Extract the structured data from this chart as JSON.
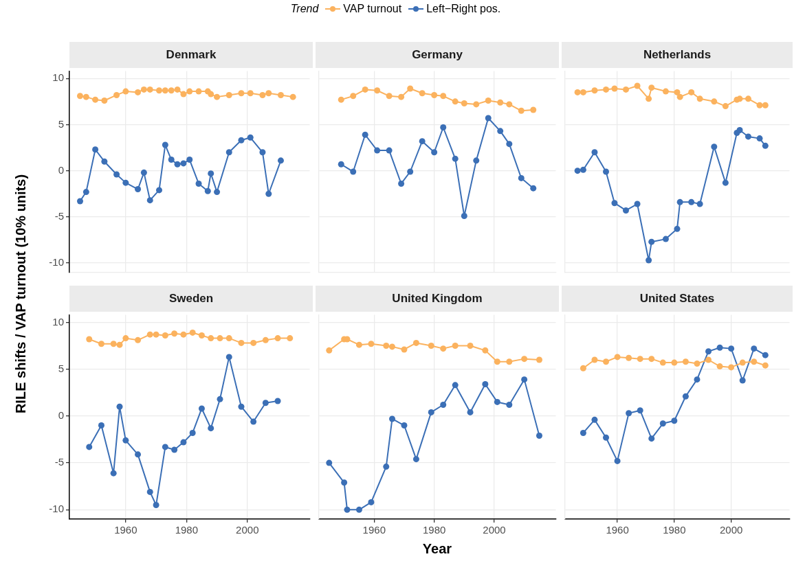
{
  "chart_data": [
    {
      "type": "line",
      "title": "Denmark",
      "ylabel": "RILE shifts / VAP turnout (10% units)",
      "legend": "top",
      "legend_title": "Trend",
      "marker": "circle",
      "grid": true,
      "tick_labels": "y",
      "xlim": [
        1941.5,
        2020.5
      ],
      "xticks": [
        1960,
        1980,
        2000
      ],
      "ylim": [
        -11,
        10.8
      ],
      "yticks": [
        -10,
        -5,
        0,
        5,
        10
      ],
      "x": [
        1945,
        1947,
        1950,
        1953,
        1957,
        1960,
        1964,
        1966,
        1968,
        1971,
        1973,
        1975,
        1977,
        1979,
        1981,
        1984,
        1987,
        1988,
        1990,
        1994,
        1998,
        2001,
        2005,
        2007,
        2011,
        2015
      ],
      "series": [
        {
          "name": "VAP turnout",
          "color": "#fbb25e",
          "values": [
            8.1,
            8.0,
            7.7,
            7.6,
            8.2,
            8.6,
            8.5,
            8.8,
            8.8,
            8.7,
            8.7,
            8.7,
            8.8,
            8.3,
            8.6,
            8.6,
            8.6,
            8.3,
            8.0,
            8.2,
            8.4,
            8.4,
            8.2,
            8.4,
            8.2,
            8.0
          ]
        },
        {
          "name": "Left−Right pos.",
          "color": "#3b6fb6",
          "values": [
            -3.3,
            -2.3,
            2.3,
            1.0,
            -0.4,
            -1.3,
            -2.0,
            -0.2,
            -3.2,
            -2.1,
            2.8,
            1.2,
            0.7,
            0.8,
            1.2,
            -1.4,
            -2.2,
            -0.3,
            -2.3,
            2.0,
            3.3,
            3.6,
            2.0,
            -2.5,
            1.1,
            null
          ]
        }
      ]
    },
    {
      "type": "line",
      "title": "Germany",
      "marker": "circle",
      "grid": true,
      "tick_labels": false,
      "xlim": [
        1941.5,
        2020.5
      ],
      "xticks": [
        1960,
        1980,
        2000
      ],
      "ylim": [
        -11,
        10.8
      ],
      "yticks": [
        -10,
        -5,
        0,
        5,
        10
      ],
      "x": [
        1949,
        1953,
        1957,
        1961,
        1965,
        1969,
        1972,
        1976,
        1980,
        1983,
        1987,
        1990,
        1994,
        1998,
        2002,
        2005,
        2009,
        2013
      ],
      "series": [
        {
          "color": "#fbb25e",
          "values": [
            7.7,
            8.1,
            8.8,
            8.7,
            8.1,
            8.0,
            8.9,
            8.4,
            8.2,
            8.1,
            7.5,
            7.3,
            7.2,
            7.6,
            7.4,
            7.2,
            6.5,
            6.6
          ]
        },
        {
          "color": "#3b6fb6",
          "values": [
            0.7,
            -0.1,
            3.9,
            2.2,
            2.2,
            -1.4,
            -0.1,
            3.2,
            2.0,
            4.7,
            1.3,
            -4.9,
            1.1,
            5.7,
            4.3,
            2.9,
            -0.8,
            -1.9
          ]
        }
      ]
    },
    {
      "type": "line",
      "title": "Netherlands",
      "marker": "circle",
      "grid": true,
      "tick_labels": false,
      "xlim": [
        1941.5,
        2020.5
      ],
      "xticks": [
        1960,
        1980,
        2000
      ],
      "ylim": [
        -11,
        10.8
      ],
      "yticks": [
        -10,
        -5,
        0,
        5,
        10
      ],
      "x": [
        1946,
        1948,
        1952,
        1956,
        1959,
        1963,
        1967,
        1971,
        1972,
        1977,
        1981,
        1982,
        1986,
        1989,
        1994,
        1998,
        2002,
        2003,
        2006,
        2010,
        2012
      ],
      "series": [
        {
          "color": "#fbb25e",
          "values": [
            8.5,
            8.5,
            8.7,
            8.8,
            8.9,
            8.8,
            9.2,
            7.8,
            9.0,
            8.6,
            8.5,
            8.0,
            8.5,
            7.8,
            7.5,
            7.0,
            7.7,
            7.8,
            7.8,
            7.1,
            7.1
          ]
        },
        {
          "color": "#3b6fb6",
          "values": [
            0.0,
            0.1,
            2.0,
            -0.1,
            -3.5,
            -4.3,
            -3.6,
            -9.7,
            -7.7,
            -7.4,
            -6.3,
            -3.4,
            -3.4,
            -3.6,
            2.6,
            -1.3,
            4.1,
            4.4,
            3.7,
            3.5,
            2.7
          ]
        }
      ]
    },
    {
      "type": "line",
      "title": "Sweden",
      "marker": "circle",
      "grid": true,
      "xlim": [
        1941.5,
        2020.5
      ],
      "xticks": [
        1960,
        1980,
        2000
      ],
      "ylim": [
        -11,
        10.8
      ],
      "yticks": [
        -10,
        -5,
        0,
        5,
        10
      ],
      "x": [
        1948,
        1952,
        1956,
        1958,
        1960,
        1964,
        1968,
        1970,
        1973,
        1976,
        1979,
        1982,
        1985,
        1988,
        1991,
        1994,
        1998,
        2002,
        2006,
        2010,
        2014
      ],
      "series": [
        {
          "color": "#fbb25e",
          "values": [
            8.2,
            7.7,
            7.7,
            7.6,
            8.3,
            8.1,
            8.7,
            8.7,
            8.6,
            8.8,
            8.7,
            8.9,
            8.6,
            8.3,
            8.3,
            8.3,
            7.8,
            7.8,
            8.1,
            8.3,
            8.3
          ]
        },
        {
          "color": "#3b6fb6",
          "values": [
            -3.3,
            -1.0,
            -6.1,
            1.0,
            -2.6,
            -4.1,
            -8.1,
            -9.5,
            -3.3,
            -3.6,
            -2.8,
            -1.8,
            0.8,
            -1.3,
            1.8,
            6.3,
            1.0,
            -0.6,
            1.4,
            1.6,
            null
          ]
        }
      ]
    },
    {
      "type": "line",
      "title": "United Kingdom",
      "xlabel": "Year",
      "marker": "circle",
      "grid": true,
      "tick_labels": "x",
      "xlim": [
        1941.5,
        2020.5
      ],
      "xticks": [
        1960,
        1980,
        2000
      ],
      "ylim": [
        -11,
        10.8
      ],
      "yticks": [
        -10,
        -5,
        0,
        5,
        10
      ],
      "x": [
        1945,
        1950,
        1951,
        1955,
        1959,
        1964,
        1966,
        1970,
        1974,
        1979,
        1983,
        1987,
        1992,
        1997,
        2001,
        2005,
        2010,
        2015
      ],
      "series": [
        {
          "color": "#fbb25e",
          "values": [
            7.0,
            8.2,
            8.2,
            7.6,
            7.7,
            7.5,
            7.4,
            7.1,
            7.8,
            7.5,
            7.2,
            7.5,
            7.5,
            7.0,
            5.8,
            5.8,
            6.1,
            6.0
          ]
        },
        {
          "color": "#3b6fb6",
          "values": [
            -5.0,
            -7.1,
            -10.0,
            -10.0,
            -9.2,
            -5.4,
            -0.3,
            -1.0,
            -4.6,
            0.4,
            1.2,
            3.3,
            0.4,
            3.4,
            1.5,
            1.2,
            3.9,
            -2.1
          ]
        }
      ]
    },
    {
      "type": "line",
      "title": "United States",
      "marker": "circle",
      "grid": true,
      "tick_labels": "x",
      "xlim": [
        1941.5,
        2020.5
      ],
      "xticks": [
        1960,
        1980,
        2000
      ],
      "ylim": [
        -11,
        10.8
      ],
      "yticks": [
        -10,
        -5,
        0,
        5,
        10
      ],
      "x": [
        1948,
        1952,
        1956,
        1960,
        1964,
        1968,
        1972,
        1976,
        1980,
        1984,
        1988,
        1992,
        1996,
        2000,
        2004,
        2008,
        2012
      ],
      "series": [
        {
          "color": "#fbb25e",
          "values": [
            5.1,
            6.0,
            5.8,
            6.3,
            6.2,
            6.1,
            6.1,
            5.7,
            5.7,
            5.8,
            5.6,
            6.0,
            5.3,
            5.2,
            5.7,
            5.8,
            5.4
          ]
        },
        {
          "color": "#3b6fb6",
          "values": [
            -1.8,
            -0.4,
            -2.3,
            -4.8,
            0.3,
            0.6,
            -2.4,
            -0.8,
            -0.5,
            2.1,
            3.9,
            6.9,
            7.3,
            7.2,
            3.8,
            7.2,
            6.5
          ]
        }
      ]
    }
  ]
}
